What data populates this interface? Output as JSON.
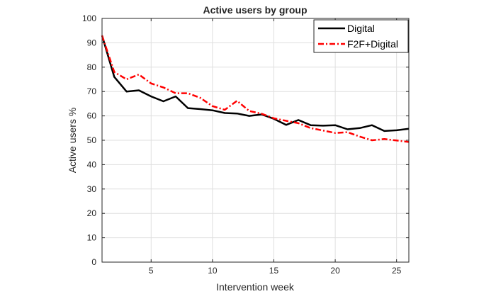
{
  "chart_data": {
    "type": "line",
    "title": "Active users by group",
    "xlabel": "Intervention week",
    "ylabel": "Active users %",
    "xlim": [
      1,
      26
    ],
    "ylim": [
      0,
      100
    ],
    "x_ticks": [
      5,
      10,
      15,
      20,
      25
    ],
    "y_ticks": [
      0,
      10,
      20,
      30,
      40,
      50,
      60,
      70,
      80,
      90,
      100
    ],
    "grid": true,
    "legend_position": "top-right",
    "x": [
      1,
      2,
      3,
      4,
      5,
      6,
      7,
      8,
      9,
      10,
      11,
      12,
      13,
      14,
      15,
      16,
      17,
      18,
      19,
      20,
      21,
      22,
      23,
      24,
      25,
      26
    ],
    "series": [
      {
        "name": "Digital",
        "color": "#000000",
        "line_style": "solid",
        "values": [
          93,
          76,
          70,
          70.5,
          68,
          66,
          68,
          63.2,
          62.8,
          62.3,
          61.2,
          61,
          60,
          60.6,
          58.8,
          56.3,
          58.3,
          56.2,
          56,
          56.2,
          54.5,
          55,
          56.2,
          53.8,
          54.1,
          54.7
        ]
      },
      {
        "name": "F2F+Digital",
        "color": "#ff0000",
        "line_style": "dashdot",
        "values": [
          93,
          78,
          75,
          77,
          73.3,
          71.7,
          69.3,
          69.3,
          67.4,
          64,
          62.5,
          66.2,
          62,
          60.9,
          59,
          58,
          57,
          55,
          54,
          53,
          53.3,
          51.5,
          50,
          50.5,
          49.9,
          49.3
        ]
      }
    ]
  }
}
